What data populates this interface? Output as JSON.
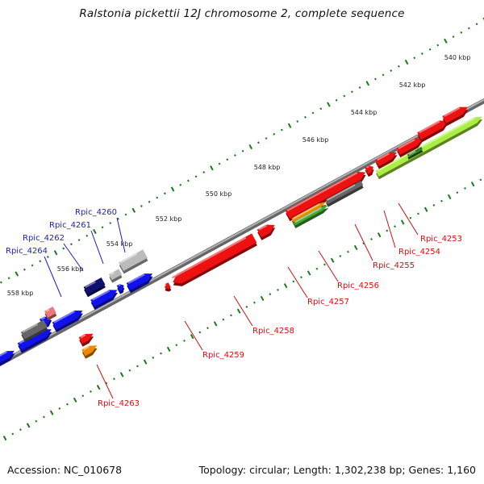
{
  "title": "Ralstonia pickettii 12J chromosome 2, complete sequence",
  "footer": {
    "accession": "Accession: NC_010678",
    "summary": "Topology: circular; Length: 1,302,238 bp; Genes: 1,160"
  },
  "colors": {
    "backbone": "#888888",
    "tick": "#1a7a1a",
    "forward_label": "#1c1ccc",
    "reverse_label": "#cc1111",
    "cds_red": "#ee1111",
    "cds_blue": "#1111ee",
    "cds_navy": "#101070",
    "cds_gray": "#666666",
    "cds_lightgray": "#bbbbbb",
    "cds_pink": "#ee7777",
    "cds_orange": "#ee8800",
    "cds_green": "#44aa33",
    "cds_darkgreen": "#2a7a2a",
    "cds_lime": "#aaee44"
  },
  "scale_labels": [
    "540 kbp",
    "542 kbp",
    "544 kbp",
    "546 kbp",
    "548 kbp",
    "550 kbp",
    "552 kbp",
    "554 kbp",
    "556 kbp",
    "558 kbp"
  ],
  "genes": [
    {
      "label": "Rpic_4253",
      "strand": "reverse"
    },
    {
      "label": "Rpic_4254",
      "strand": "reverse"
    },
    {
      "label": "Rpic_4255",
      "strand": "reverse"
    },
    {
      "label": "Rpic_4256",
      "strand": "reverse"
    },
    {
      "label": "Rpic_4257",
      "strand": "reverse"
    },
    {
      "label": "Rpic_4258",
      "strand": "reverse"
    },
    {
      "label": "Rpic_4259",
      "strand": "reverse"
    },
    {
      "label": "Rpic_4260",
      "strand": "forward"
    },
    {
      "label": "Rpic_4261",
      "strand": "forward"
    },
    {
      "label": "Rpic_4262",
      "strand": "forward"
    },
    {
      "label": "Rpic_4263",
      "strand": "reverse"
    },
    {
      "label": "Rpic_4264",
      "strand": "forward"
    }
  ]
}
